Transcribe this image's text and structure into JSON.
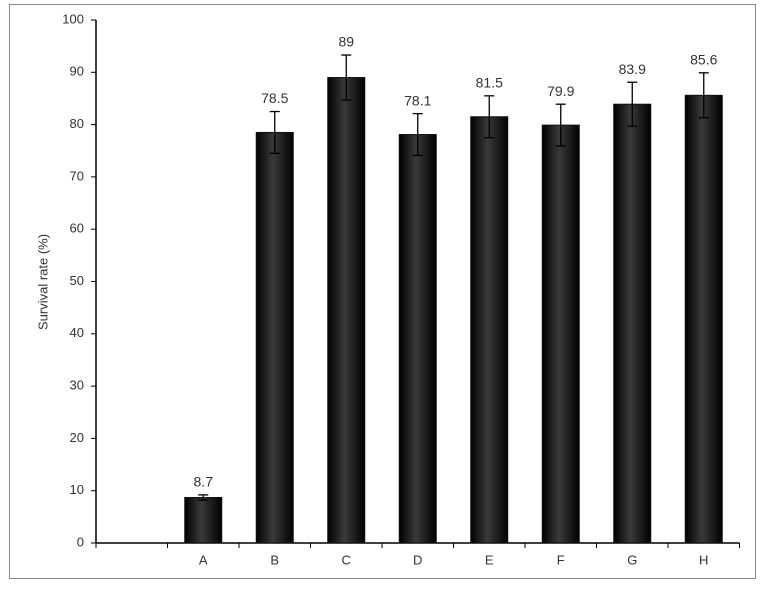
{
  "chart_data": {
    "type": "bar",
    "y_label": "Survival rate (%)",
    "categories": [
      null,
      "A",
      "B",
      "C",
      "D",
      "E",
      "F",
      "G",
      "H"
    ],
    "values": [
      null,
      8.7,
      78.5,
      89,
      78.1,
      81.5,
      79.9,
      83.9,
      85.6
    ],
    "errors": [
      null,
      0.5,
      4,
      4.3,
      4,
      4,
      4,
      4.2,
      4.3
    ],
    "color": "#111111",
    "ylim": [
      0,
      100
    ],
    "yticks": [
      0,
      10,
      20,
      30,
      40,
      50,
      60,
      70,
      80,
      90,
      100
    ],
    "grid": false
  }
}
